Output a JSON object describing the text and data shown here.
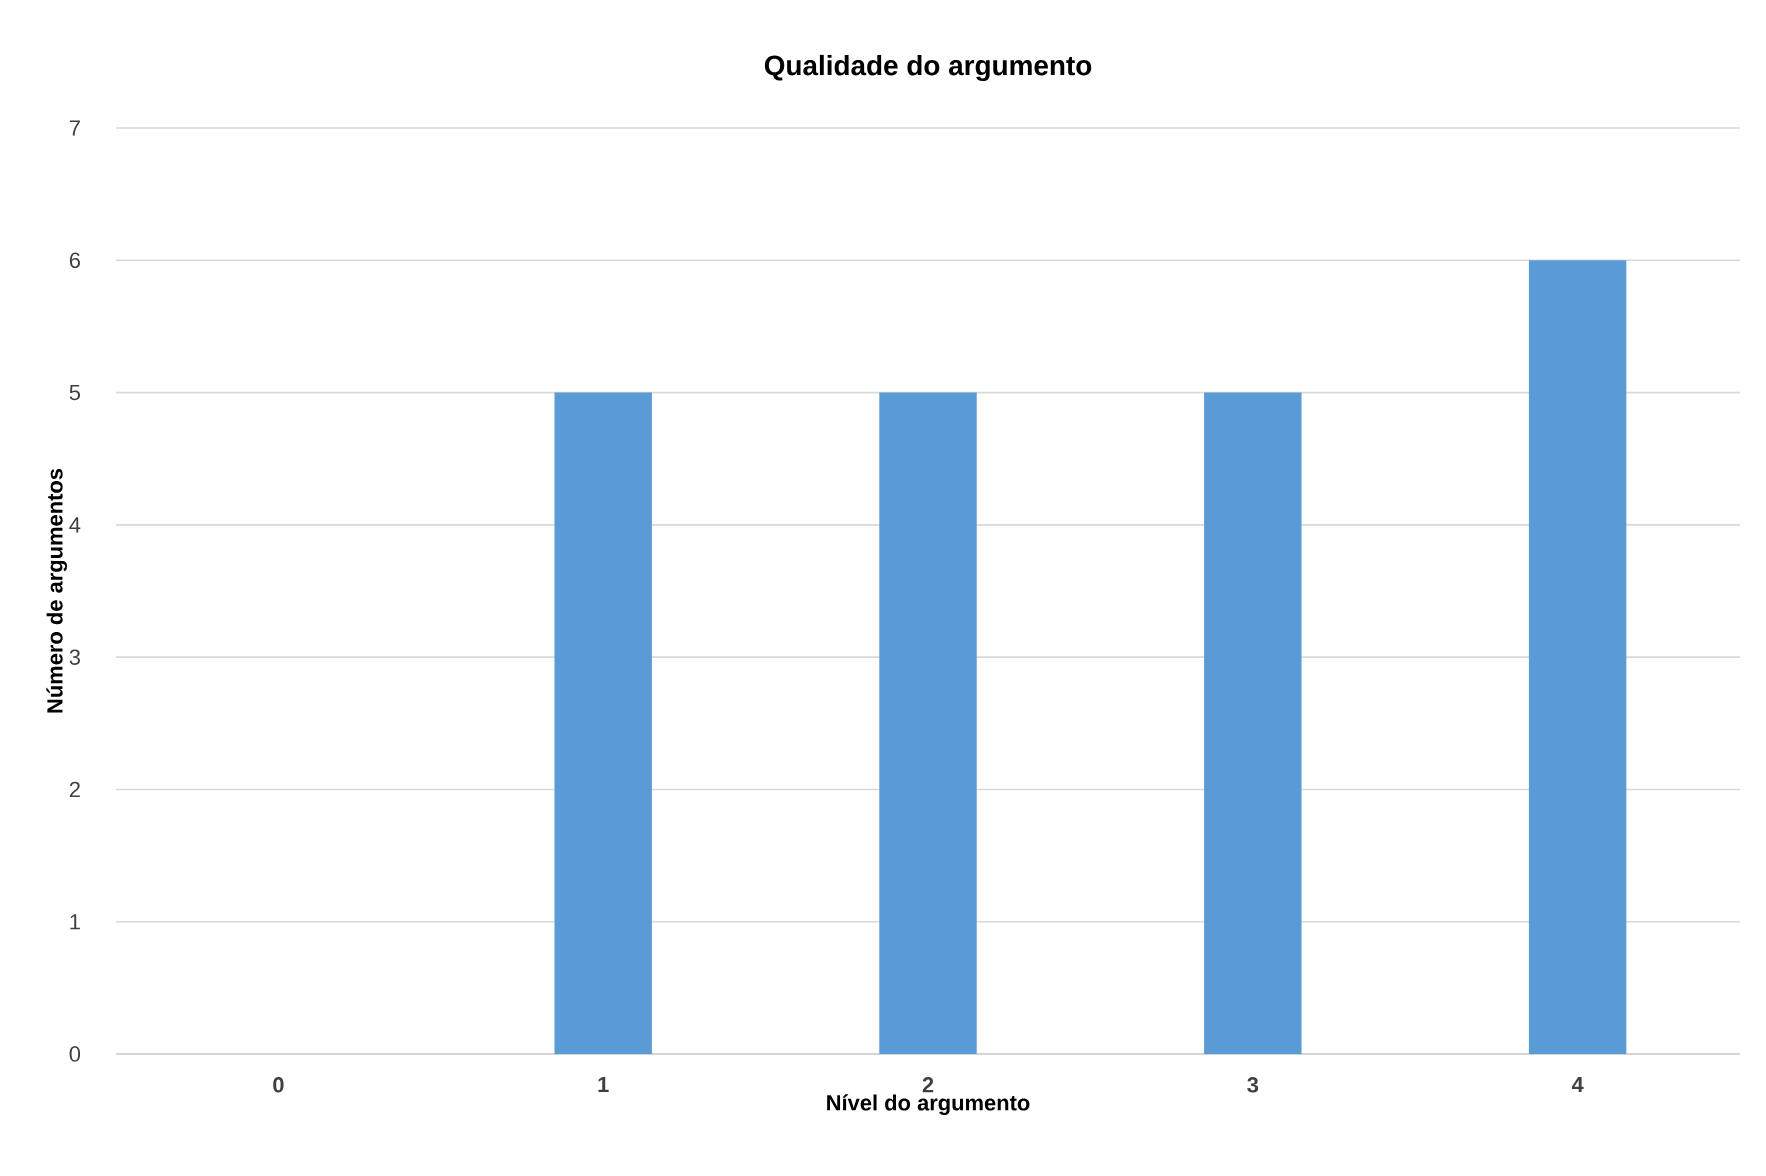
{
  "chart_data": {
    "type": "bar",
    "title": "Qualidade do argumento",
    "xlabel": "Nível do argumento",
    "ylabel": "Número de argumentos",
    "categories": [
      "0",
      "1",
      "2",
      "3",
      "4"
    ],
    "values": [
      0,
      5,
      5,
      5,
      6
    ],
    "color": "#5b9bd5",
    "ylim": [
      0,
      7
    ],
    "yticks": [
      0,
      1,
      2,
      3,
      4,
      5,
      6,
      7
    ],
    "grid": "y"
  }
}
